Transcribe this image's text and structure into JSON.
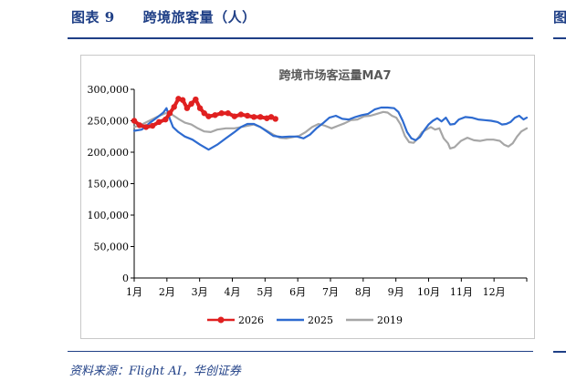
{
  "figure": {
    "title": "图表 9　　跨境旅客量（人）",
    "source": "资料来源：Flight AI，华创证券",
    "right_mark": "图"
  },
  "chart_data": {
    "type": "line",
    "title": "跨境市场客运量MA7",
    "xlabel": "",
    "ylabel": "",
    "x_ticks": [
      "1月",
      "2月",
      "3月",
      "4月",
      "5月",
      "6月",
      "7月",
      "8月",
      "9月",
      "10月",
      "11月",
      "12月"
    ],
    "x_unit": "day_of_year",
    "xlim": [
      1,
      365
    ],
    "ylim": [
      0,
      300000
    ],
    "y_ticks": [
      0,
      50000,
      100000,
      150000,
      200000,
      250000,
      300000
    ],
    "y_tick_labels": [
      "0",
      "50,000",
      "100,000",
      "150,000",
      "200,000",
      "250,000",
      "300,000"
    ],
    "grid": false,
    "legend_position": "bottom",
    "series": [
      {
        "name": "2026",
        "color": "#e02020",
        "marker": "circle",
        "points": [
          [
            1,
            250000
          ],
          [
            6,
            243000
          ],
          [
            12,
            240000
          ],
          [
            18,
            242000
          ],
          [
            24,
            248000
          ],
          [
            30,
            252000
          ],
          [
            34,
            262000
          ],
          [
            38,
            272000
          ],
          [
            42,
            285000
          ],
          [
            46,
            283000
          ],
          [
            50,
            270000
          ],
          [
            54,
            277000
          ],
          [
            58,
            284000
          ],
          [
            62,
            270000
          ],
          [
            66,
            262000
          ],
          [
            70,
            257000
          ],
          [
            76,
            259000
          ],
          [
            82,
            262000
          ],
          [
            88,
            262000
          ],
          [
            94,
            257000
          ],
          [
            100,
            260000
          ],
          [
            106,
            258000
          ],
          [
            112,
            256000
          ],
          [
            118,
            256000
          ],
          [
            124,
            254000
          ],
          [
            128,
            256000
          ],
          [
            132,
            253000
          ]
        ]
      },
      {
        "name": "2025",
        "color": "#2e6bd0",
        "marker": "none",
        "points": [
          [
            1,
            234000
          ],
          [
            8,
            236000
          ],
          [
            15,
            246000
          ],
          [
            22,
            255000
          ],
          [
            28,
            263000
          ],
          [
            31,
            270000
          ],
          [
            34,
            253000
          ],
          [
            37,
            240000
          ],
          [
            42,
            232000
          ],
          [
            48,
            225000
          ],
          [
            55,
            220000
          ],
          [
            62,
            212000
          ],
          [
            70,
            204000
          ],
          [
            78,
            212000
          ],
          [
            86,
            222000
          ],
          [
            94,
            232000
          ],
          [
            100,
            240000
          ],
          [
            106,
            245000
          ],
          [
            112,
            245000
          ],
          [
            118,
            240000
          ],
          [
            124,
            233000
          ],
          [
            130,
            226000
          ],
          [
            138,
            224000
          ],
          [
            145,
            225000
          ],
          [
            152,
            225000
          ],
          [
            158,
            222000
          ],
          [
            164,
            228000
          ],
          [
            170,
            238000
          ],
          [
            176,
            246000
          ],
          [
            182,
            255000
          ],
          [
            188,
            258000
          ],
          [
            194,
            253000
          ],
          [
            200,
            252000
          ],
          [
            206,
            256000
          ],
          [
            212,
            259000
          ],
          [
            218,
            261000
          ],
          [
            224,
            268000
          ],
          [
            230,
            271000
          ],
          [
            236,
            271000
          ],
          [
            242,
            270000
          ],
          [
            246,
            264000
          ],
          [
            250,
            250000
          ],
          [
            254,
            232000
          ],
          [
            258,
            222000
          ],
          [
            262,
            219000
          ],
          [
            266,
            224000
          ],
          [
            270,
            235000
          ],
          [
            274,
            244000
          ],
          [
            278,
            250000
          ],
          [
            282,
            254000
          ],
          [
            286,
            249000
          ],
          [
            290,
            255000
          ],
          [
            294,
            244000
          ],
          [
            298,
            245000
          ],
          [
            302,
            252000
          ],
          [
            308,
            256000
          ],
          [
            314,
            255000
          ],
          [
            320,
            252000
          ],
          [
            326,
            251000
          ],
          [
            332,
            250000
          ],
          [
            338,
            248000
          ],
          [
            342,
            244000
          ],
          [
            346,
            245000
          ],
          [
            350,
            248000
          ],
          [
            354,
            255000
          ],
          [
            358,
            258000
          ],
          [
            362,
            252000
          ],
          [
            365,
            255000
          ]
        ]
      },
      {
        "name": "2019",
        "color": "#a6a6a6",
        "marker": "none",
        "points": [
          [
            1,
            240000
          ],
          [
            8,
            244000
          ],
          [
            15,
            250000
          ],
          [
            22,
            256000
          ],
          [
            30,
            262000
          ],
          [
            36,
            260000
          ],
          [
            42,
            253000
          ],
          [
            48,
            247000
          ],
          [
            54,
            244000
          ],
          [
            60,
            238000
          ],
          [
            66,
            233000
          ],
          [
            72,
            232000
          ],
          [
            78,
            236000
          ],
          [
            86,
            238000
          ],
          [
            94,
            238000
          ],
          [
            100,
            240000
          ],
          [
            106,
            242000
          ],
          [
            112,
            244000
          ],
          [
            118,
            240000
          ],
          [
            124,
            234000
          ],
          [
            130,
            228000
          ],
          [
            136,
            223000
          ],
          [
            142,
            222000
          ],
          [
            148,
            224000
          ],
          [
            154,
            226000
          ],
          [
            160,
            232000
          ],
          [
            166,
            240000
          ],
          [
            172,
            245000
          ],
          [
            178,
            242000
          ],
          [
            184,
            238000
          ],
          [
            190,
            242000
          ],
          [
            196,
            246000
          ],
          [
            202,
            251000
          ],
          [
            208,
            252000
          ],
          [
            214,
            257000
          ],
          [
            220,
            258000
          ],
          [
            226,
            261000
          ],
          [
            232,
            264000
          ],
          [
            236,
            263000
          ],
          [
            240,
            258000
          ],
          [
            244,
            255000
          ],
          [
            248,
            244000
          ],
          [
            252,
            226000
          ],
          [
            256,
            216000
          ],
          [
            260,
            215000
          ],
          [
            264,
            222000
          ],
          [
            268,
            232000
          ],
          [
            272,
            236000
          ],
          [
            276,
            240000
          ],
          [
            280,
            236000
          ],
          [
            284,
            238000
          ],
          [
            288,
            222000
          ],
          [
            292,
            214000
          ],
          [
            294,
            206000
          ],
          [
            298,
            208000
          ],
          [
            304,
            218000
          ],
          [
            310,
            223000
          ],
          [
            316,
            219000
          ],
          [
            322,
            218000
          ],
          [
            328,
            220000
          ],
          [
            334,
            220000
          ],
          [
            340,
            218000
          ],
          [
            344,
            212000
          ],
          [
            348,
            209000
          ],
          [
            352,
            214000
          ],
          [
            356,
            225000
          ],
          [
            360,
            233000
          ],
          [
            365,
            238000
          ]
        ]
      }
    ]
  }
}
